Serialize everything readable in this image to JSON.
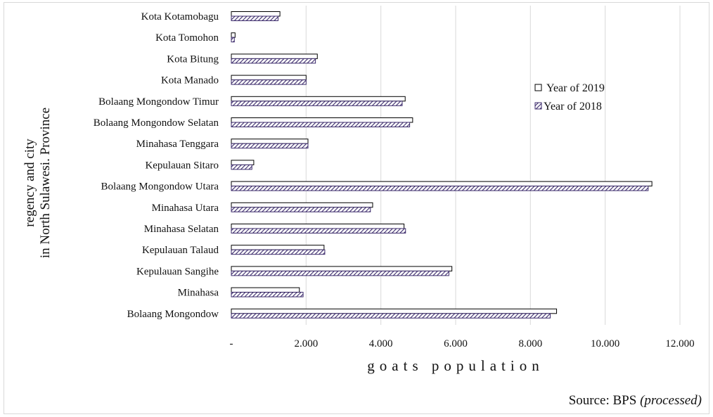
{
  "chart_data": {
    "type": "bar",
    "orientation": "horizontal",
    "categories": [
      "Kota Kotamobagu",
      "Kota Tomohon",
      "Kota Bitung",
      "Kota Manado",
      "Bolaang Mongondow Timur",
      "Bolaang Mongondow Selatan",
      "Minahasa Tenggara",
      "Kepulauan Sitaro",
      "Bolaang Mongondow Utara",
      "Minahasa Utara",
      "Minahasa Selatan",
      "Kepulauan Talaud",
      "Kepulauan Sangihe",
      "Minahasa",
      "Bolaang Mongondow"
    ],
    "series": [
      {
        "name": "Year of 2019",
        "values": [
          1300,
          100,
          2300,
          2000,
          4650,
          4850,
          2050,
          600,
          11250,
          3780,
          4620,
          2480,
          5900,
          1820,
          8700
        ]
      },
      {
        "name": "Year of 2018",
        "values": [
          1250,
          80,
          2250,
          2000,
          4570,
          4770,
          2050,
          550,
          11150,
          3720,
          4660,
          2500,
          5820,
          1920,
          8530
        ]
      }
    ],
    "xlabel": "goats population",
    "ylabel_lines": [
      "regency and city",
      "in North Sulawesi. Province"
    ],
    "xlim": [
      0,
      12000
    ],
    "xticks": [
      0,
      2000,
      4000,
      6000,
      8000,
      10000,
      12000
    ],
    "xtick_labels": [
      "-",
      "2.000",
      "4.000",
      "6.000",
      "8.000",
      "10.000",
      "12.000"
    ],
    "grid": "vertical",
    "legend": "center-right",
    "colors": {
      "bar_2019_fill": "#ffffff",
      "bar_edge": "#000000",
      "bar_2018_hatch": "#3b2a6b",
      "grid": "#d9d9d9"
    }
  },
  "source": {
    "prefix": "Source: BPS ",
    "note": "(processed)"
  }
}
